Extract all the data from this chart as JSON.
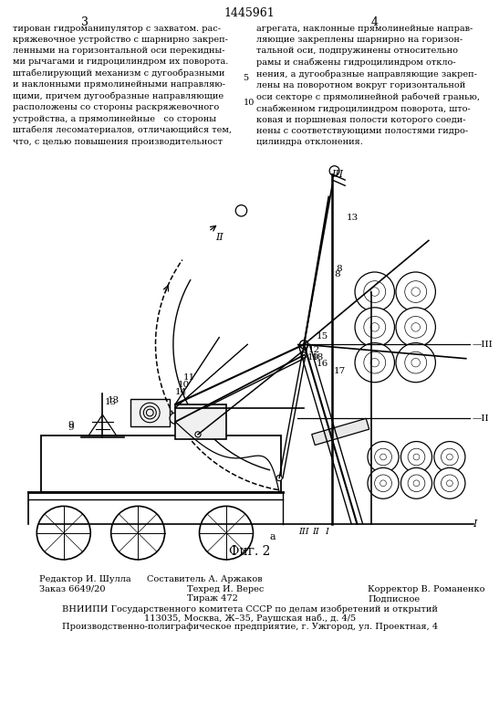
{
  "page_number_center": "1445961",
  "col_left_num": "3",
  "col_right_num": "4",
  "text_left_full": "тирован гидроманипулятор с захватом. рас-\nкряжевочное устройство с шарнирно закреп-\nленными на горизонтальной оси перекидны-\nми рычагами и гидроцилиндром их поворота.\nштабелирующий механизм с дугообразными\nи наклонными прямолинейными направляю-\nщими, причем дугообразные направляющие\nрасположены со стороны раскряжевочного\nустройства, а прямолинейные   со стороны\nштабеля лесоматериалов, отличающийся тем,\nчто, с целью повышения производительност",
  "text_right_full": "агрегата, наклонные прямолинейные направ-\nляющие закреплены шарнирно на горизон-\nтальной оси, подпружинены относительно\nрамы и снабжены гидроцилиндром откло-\nнения, а дугообразные направляющие закреп-\nлены на поворотном вокруг горизонтальной\nоси секторе с прямолинейной рабочей гранью,\nснабженном гидроцилиндром поворота, што-\nковая и поршневая полости которого соеди-\nнены с соответствующими полостями гидро-\nцилиндра отклонения.",
  "line_num_5": "5",
  "line_num_10": "10",
  "fig_label": "Фиг. 2",
  "fig_sub": "а",
  "footer_editor": "Редактор И. Шулла",
  "footer_order": "Заказ 6649/20",
  "footer_composer": "Составитель А. Аржаков",
  "footer_techred": "Техред И. Верес",
  "footer_tiraz": "Тираж 472",
  "footer_corrector": "Корректор В. Романенко",
  "footer_podpisnoye": "Подписное",
  "footer_vniiipi": "ВНИИПИ Государственного комитета СССР по делам изобретений и открытий",
  "footer_addr1": "113035, Москва, Ж–35, Раушская наб., д. 4/5",
  "footer_addr2": "Производственно-полиграфическое предприятие, г. Ужгород, ул. Проектная, 4",
  "bg_color": "#ffffff",
  "lc": "#000000",
  "tc": "#000000"
}
